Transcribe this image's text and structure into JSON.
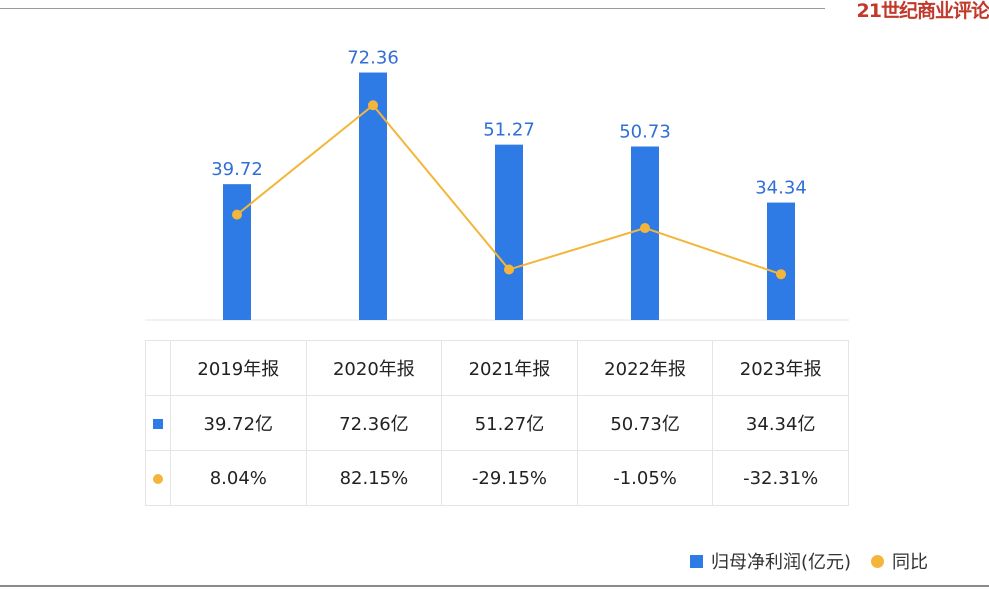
{
  "brand": "21世纪商业评论",
  "chart_data": {
    "type": "bar",
    "categories": [
      "2019年报",
      "2020年报",
      "2021年报",
      "2022年报",
      "2023年报"
    ],
    "series": [
      {
        "name": "归母净利润(亿元)",
        "type": "bar",
        "values": [
          39.72,
          72.36,
          51.27,
          50.73,
          34.34
        ],
        "labels": [
          "39.72",
          "72.36",
          "51.27",
          "50.73",
          "34.34"
        ],
        "table_labels": [
          "39.72亿",
          "72.36亿",
          "51.27亿",
          "50.73亿",
          "34.34亿"
        ],
        "color": "#2f7be6"
      },
      {
        "name": "同比",
        "type": "line",
        "values": [
          8.04,
          82.15,
          -29.15,
          -1.05,
          -32.31
        ],
        "table_labels": [
          "8.04%",
          "82.15%",
          "-29.15%",
          "-1.05%",
          "-32.31%"
        ],
        "color": "#f4b63a"
      }
    ],
    "legend_position": "bottom-right",
    "grid": false
  }
}
